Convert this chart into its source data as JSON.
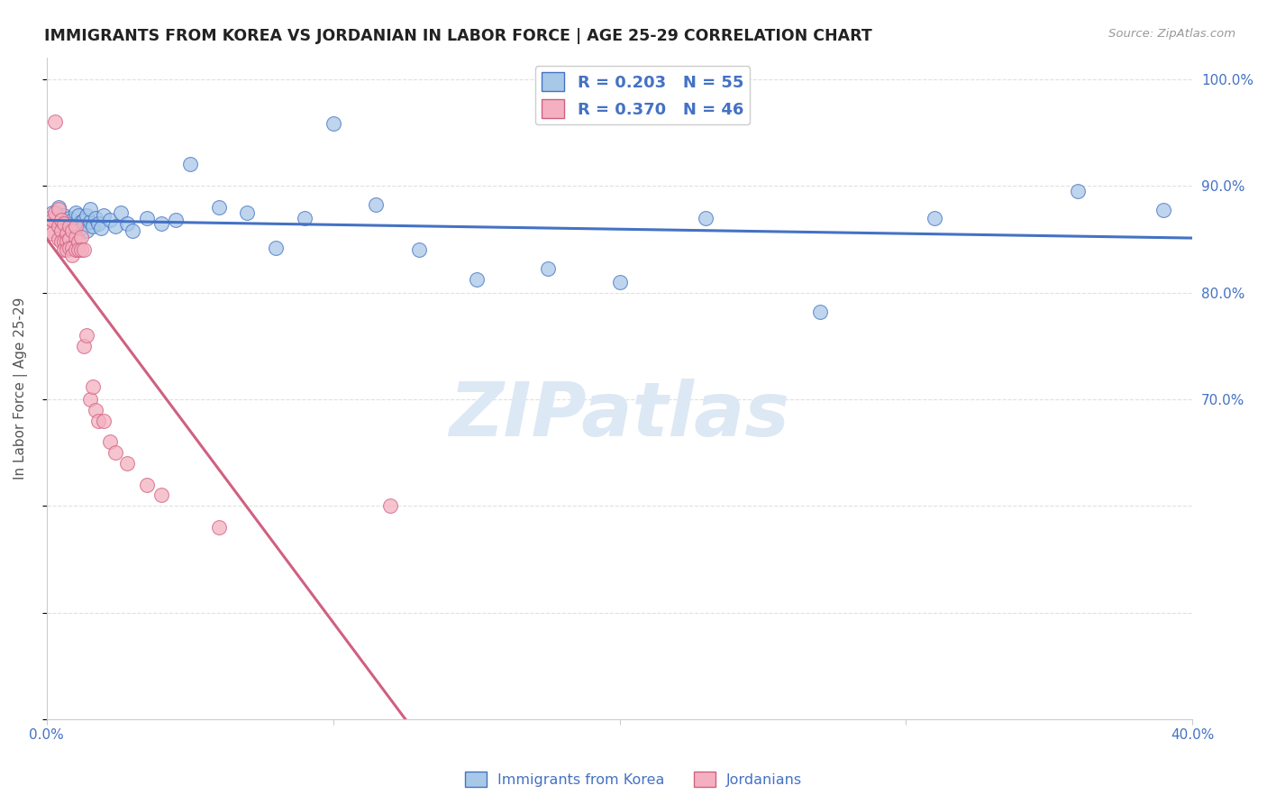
{
  "title": "IMMIGRANTS FROM KOREA VS JORDANIAN IN LABOR FORCE | AGE 25-29 CORRELATION CHART",
  "source": "Source: ZipAtlas.com",
  "ylabel": "In Labor Force | Age 25-29",
  "x_min": 0.0,
  "x_max": 0.4,
  "y_min": 0.4,
  "y_max": 1.02,
  "legend_r_blue": "R = 0.203",
  "legend_n_blue": "N = 55",
  "legend_r_pink": "R = 0.370",
  "legend_n_pink": "N = 46",
  "legend_label_blue": "Immigrants from Korea",
  "legend_label_pink": "Jordanians",
  "blue_fill": "#a8c8e8",
  "blue_edge": "#4472c4",
  "pink_fill": "#f4b0c0",
  "pink_edge": "#d06080",
  "blue_line": "#4472c4",
  "pink_line": "#d06080",
  "watermark": "ZIPatlas",
  "watermark_color": "#dde8f5",
  "background": "#ffffff",
  "grid_color": "#e0e0e0",
  "title_color": "#222222",
  "axis_label_color": "#4472c4",
  "korea_x": [
    0.002,
    0.003,
    0.004,
    0.004,
    0.005,
    0.005,
    0.006,
    0.006,
    0.007,
    0.007,
    0.008,
    0.008,
    0.009,
    0.009,
    0.01,
    0.01,
    0.011,
    0.011,
    0.012,
    0.012,
    0.013,
    0.013,
    0.014,
    0.014,
    0.015,
    0.015,
    0.016,
    0.017,
    0.018,
    0.019,
    0.02,
    0.022,
    0.024,
    0.026,
    0.028,
    0.03,
    0.035,
    0.04,
    0.045,
    0.05,
    0.06,
    0.07,
    0.08,
    0.09,
    0.1,
    0.115,
    0.13,
    0.15,
    0.175,
    0.2,
    0.23,
    0.27,
    0.31,
    0.36,
    0.39
  ],
  "korea_y": [
    0.875,
    0.87,
    0.862,
    0.88,
    0.868,
    0.855,
    0.872,
    0.86,
    0.865,
    0.858,
    0.87,
    0.862,
    0.868,
    0.855,
    0.875,
    0.862,
    0.858,
    0.872,
    0.866,
    0.86,
    0.868,
    0.862,
    0.872,
    0.858,
    0.866,
    0.878,
    0.862,
    0.87,
    0.865,
    0.86,
    0.872,
    0.868,
    0.862,
    0.875,
    0.865,
    0.858,
    0.87,
    0.865,
    0.868,
    0.92,
    0.88,
    0.875,
    0.842,
    0.87,
    0.958,
    0.882,
    0.84,
    0.812,
    0.822,
    0.81,
    0.87,
    0.782,
    0.87,
    0.895,
    0.877
  ],
  "jordan_x": [
    0.001,
    0.001,
    0.002,
    0.002,
    0.003,
    0.003,
    0.004,
    0.004,
    0.004,
    0.005,
    0.005,
    0.005,
    0.006,
    0.006,
    0.006,
    0.007,
    0.007,
    0.007,
    0.008,
    0.008,
    0.008,
    0.009,
    0.009,
    0.009,
    0.01,
    0.01,
    0.01,
    0.011,
    0.011,
    0.012,
    0.012,
    0.013,
    0.013,
    0.014,
    0.015,
    0.016,
    0.017,
    0.018,
    0.02,
    0.022,
    0.024,
    0.028,
    0.035,
    0.04,
    0.12,
    0.06
  ],
  "jordan_y": [
    0.858,
    0.87,
    0.868,
    0.855,
    0.96,
    0.875,
    0.862,
    0.878,
    0.85,
    0.868,
    0.858,
    0.848,
    0.865,
    0.848,
    0.84,
    0.855,
    0.848,
    0.84,
    0.862,
    0.85,
    0.842,
    0.858,
    0.842,
    0.835,
    0.852,
    0.84,
    0.862,
    0.848,
    0.84,
    0.852,
    0.84,
    0.84,
    0.75,
    0.76,
    0.7,
    0.712,
    0.69,
    0.68,
    0.68,
    0.66,
    0.65,
    0.64,
    0.62,
    0.61,
    0.6,
    0.58
  ]
}
